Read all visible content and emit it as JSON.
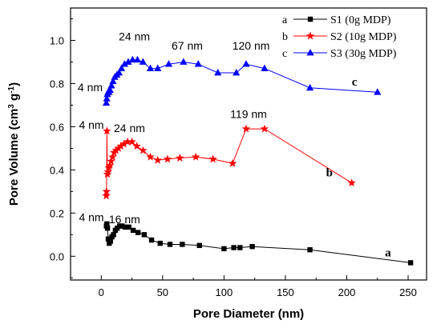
{
  "chart_data": {
    "type": "line",
    "xlabel": "Pore Diameter (nm)",
    "ylabel": {
      "base": "Pore Volume (cm",
      "sup1": "3",
      "mid": " g",
      "sup2": "-1",
      "end": ")"
    },
    "xlim": [
      -25,
      265
    ],
    "ylim": [
      -0.11,
      1.15
    ],
    "xticks": [
      0,
      50,
      100,
      150,
      200,
      250
    ],
    "yticks": [
      0.0,
      0.2,
      0.4,
      0.6,
      0.8,
      1.0
    ],
    "ytick_labels": [
      "0.0",
      "0.2",
      "0.4",
      "0.6",
      "0.8",
      "1.0"
    ],
    "legend_position": "top-right",
    "series": [
      {
        "key": "s1",
        "name": "S1 (0g MDP)",
        "letter": "a",
        "color": "#000000",
        "marker": "square",
        "x": [
          4.2,
          4.6,
          5.1,
          5.7,
          6.5,
          7.5,
          8.7,
          10,
          11.5,
          13,
          15,
          17,
          19.5,
          22.5,
          26,
          30,
          35,
          41,
          48,
          56,
          66,
          80,
          100,
          108,
          113,
          123,
          170,
          252
        ],
        "y": [
          0.14,
          0.15,
          0.13,
          0.08,
          0.06,
          0.07,
          0.09,
          0.1,
          0.12,
          0.13,
          0.14,
          0.14,
          0.135,
          0.135,
          0.12,
          0.11,
          0.1,
          0.075,
          0.06,
          0.055,
          0.055,
          0.05,
          0.035,
          0.04,
          0.04,
          0.045,
          0.03,
          -0.03
        ]
      },
      {
        "key": "s2",
        "name": "S2 (10g MDP)",
        "letter": "b",
        "color": "#ff0000",
        "marker": "star",
        "x": [
          4.1,
          4.3,
          4.6,
          5.0,
          5.5,
          6.2,
          7.0,
          8.0,
          9.2,
          10.5,
          12,
          14,
          16,
          18.5,
          21.5,
          25,
          29,
          34,
          40,
          46,
          54,
          64,
          77,
          91,
          107,
          118,
          133,
          204
        ],
        "y": [
          0.28,
          0.3,
          0.58,
          0.38,
          0.39,
          0.41,
          0.42,
          0.44,
          0.46,
          0.48,
          0.49,
          0.5,
          0.51,
          0.52,
          0.53,
          0.53,
          0.51,
          0.49,
          0.46,
          0.445,
          0.45,
          0.455,
          0.46,
          0.45,
          0.43,
          0.59,
          0.59,
          0.34
        ]
      },
      {
        "key": "s3",
        "name": "S3 (30g MDP)",
        "letter": "c",
        "color": "#0000ff",
        "marker": "triangle",
        "x": [
          4.1,
          4.5,
          5.0,
          5.6,
          6.3,
          7.2,
          8.3,
          9.6,
          11,
          12.7,
          14.5,
          16.5,
          19,
          22,
          25.5,
          29.5,
          34,
          40,
          46,
          55,
          67,
          79,
          95,
          110,
          118,
          133,
          170,
          225
        ],
        "y": [
          0.71,
          0.73,
          0.75,
          0.76,
          0.76,
          0.77,
          0.79,
          0.81,
          0.83,
          0.84,
          0.85,
          0.87,
          0.89,
          0.9,
          0.91,
          0.91,
          0.9,
          0.87,
          0.87,
          0.89,
          0.9,
          0.89,
          0.85,
          0.85,
          0.89,
          0.87,
          0.78,
          0.76
        ]
      }
    ],
    "annotations": [
      {
        "text": "4 nm",
        "x": -9,
        "y": 0.765
      },
      {
        "text": "24 nm",
        "x": 27,
        "y": 1.0
      },
      {
        "text": "67 nm",
        "x": 70,
        "y": 0.957
      },
      {
        "text": "120 nm",
        "x": 122,
        "y": 0.957
      },
      {
        "text": "4 nm",
        "x": -8,
        "y": 0.59
      },
      {
        "text": "24 nm",
        "x": 23,
        "y": 0.575
      },
      {
        "text": "119 nm",
        "x": 120,
        "y": 0.64
      },
      {
        "text": "4 nm",
        "x": -8,
        "y": 0.163
      },
      {
        "text": "16 nm",
        "x": 19,
        "y": 0.153
      }
    ]
  }
}
